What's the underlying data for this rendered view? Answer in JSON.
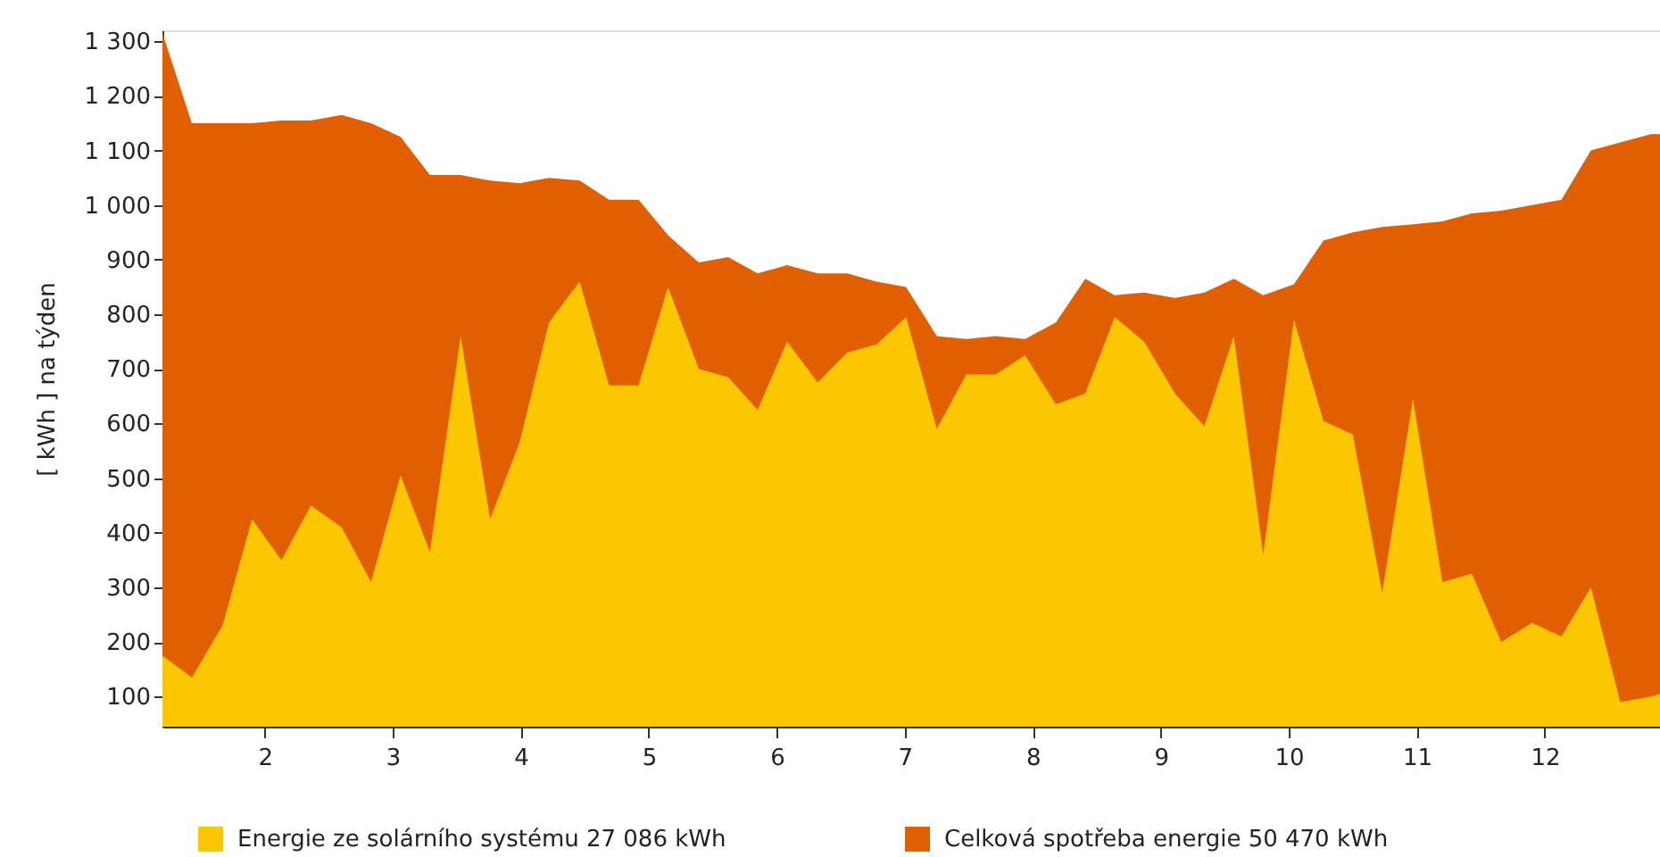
{
  "chart_data": {
    "type": "area",
    "ylabel": "[ kWh ] na týden",
    "x": [
      1.2,
      1.43,
      1.67,
      1.9,
      2.13,
      2.36,
      2.6,
      2.83,
      3.06,
      3.29,
      3.53,
      3.76,
      3.99,
      4.22,
      4.46,
      4.69,
      4.92,
      5.15,
      5.39,
      5.62,
      5.85,
      6.08,
      6.32,
      6.55,
      6.78,
      7.01,
      7.25,
      7.48,
      7.71,
      7.94,
      8.18,
      8.41,
      8.64,
      8.87,
      9.11,
      9.34,
      9.57,
      9.8,
      10.04,
      10.27,
      10.5,
      10.73,
      10.97,
      11.2,
      11.43,
      11.66,
      11.9,
      12.13,
      12.36,
      12.59,
      12.83,
      12.9
    ],
    "series": [
      {
        "name": "Energie ze solárního systému 27 086 kWh",
        "color": "#fbc700",
        "values": [
          175,
          135,
          230,
          425,
          350,
          450,
          410,
          310,
          505,
          365,
          760,
          425,
          565,
          785,
          860,
          670,
          670,
          850,
          700,
          685,
          625,
          750,
          675,
          730,
          745,
          795,
          590,
          690,
          690,
          725,
          635,
          655,
          795,
          750,
          655,
          595,
          760,
          360,
          790,
          605,
          580,
          290,
          645,
          310,
          325,
          200,
          235,
          210,
          300,
          90,
          100,
          105
        ]
      },
      {
        "name": "Celková spotřeba energie 50 470 kWh",
        "color": "#e15f00",
        "values": [
          1315,
          1150,
          1150,
          1150,
          1155,
          1155,
          1165,
          1150,
          1125,
          1055,
          1055,
          1045,
          1040,
          1050,
          1045,
          1010,
          1010,
          945,
          895,
          905,
          875,
          890,
          875,
          875,
          860,
          850,
          760,
          755,
          760,
          755,
          785,
          865,
          835,
          840,
          830,
          840,
          865,
          835,
          855,
          935,
          950,
          960,
          965,
          970,
          985,
          990,
          1000,
          1010,
          1100,
          1115,
          1130,
          1130
        ]
      }
    ],
    "xlim": [
      1.2,
      12.9
    ],
    "ylim": [
      45,
      1320
    ],
    "xticks": [
      2,
      3,
      4,
      5,
      6,
      7,
      8,
      9,
      10,
      11,
      12
    ],
    "yticks": [
      100,
      200,
      300,
      400,
      500,
      600,
      700,
      800,
      900,
      {
        "value": 1000,
        "label": "1 000"
      },
      {
        "value": 1100,
        "label": "1 100"
      },
      {
        "value": 1200,
        "label": "1 200"
      },
      {
        "value": 1300,
        "label": "1 300"
      }
    ],
    "legend": "bottom",
    "grid": false
  }
}
